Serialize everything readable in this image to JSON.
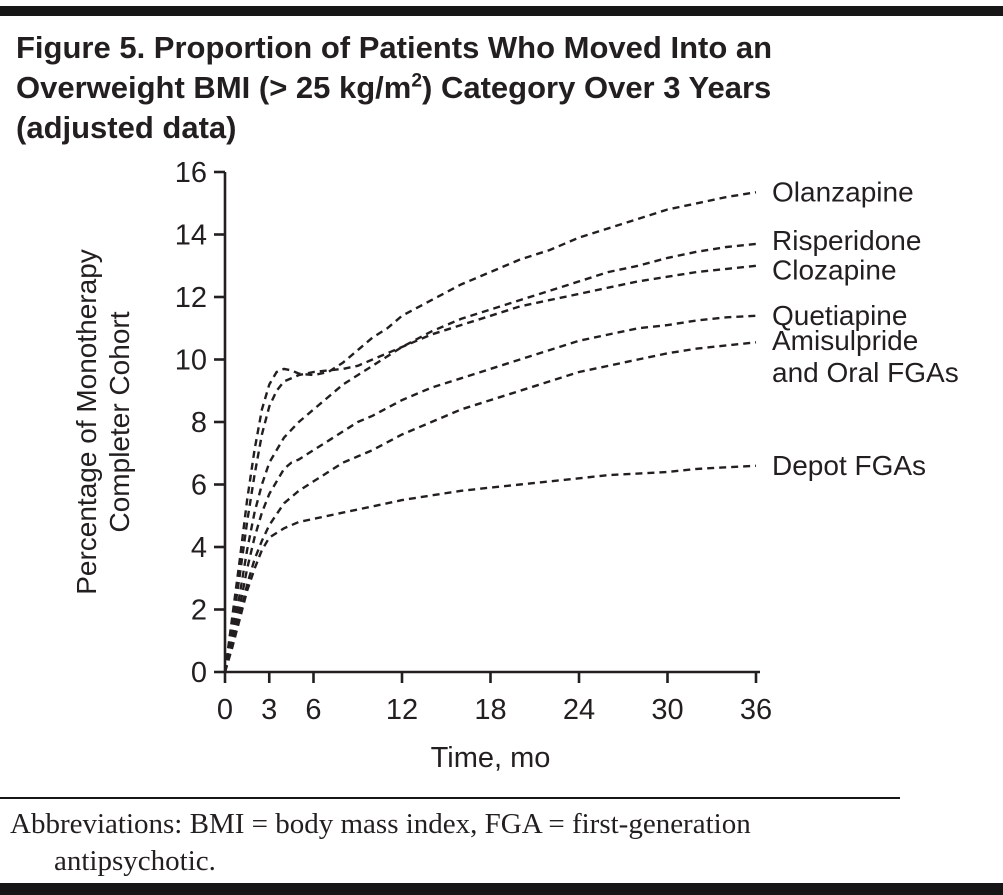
{
  "title": {
    "line1": "Figure 5. Proportion of Patients Who Moved Into an",
    "line2_pre": "Overweight BMI (> 25 kg/m",
    "line2_sup": "2",
    "line2_post": ") Category Over 3 Years",
    "line3": "(adjusted data)"
  },
  "footer": {
    "abbreviations": "Abbreviations: BMI = body mass index, FGA = first-generation antipsychotic."
  },
  "chart_data": {
    "type": "line",
    "line_style": "dashed",
    "line_color": "#231f20",
    "title": "Figure 5. Proportion of Patients Who Moved Into an Overweight BMI (> 25 kg/m2) Category Over 3 Years (adjusted data)",
    "xlabel": "Time, mo",
    "ylabel_lines": [
      "Percentage of Monotherapy",
      "Completer Cohort"
    ],
    "xlim": [
      0,
      36
    ],
    "ylim": [
      0,
      16
    ],
    "xticks": [
      0,
      3,
      6,
      12,
      18,
      24,
      30,
      36
    ],
    "yticks": [
      0,
      2,
      4,
      6,
      8,
      10,
      12,
      14,
      16
    ],
    "grid": false,
    "legend_position": "right-of-lines",
    "series": [
      {
        "id": "olanzapine",
        "name": "Olanzapine",
        "label_lines": [
          "Olanzapine"
        ],
        "label_y": 15.35,
        "points": [
          [
            0,
            0
          ],
          [
            0.5,
            1.8
          ],
          [
            1,
            3.6
          ],
          [
            1.5,
            5.5
          ],
          [
            2,
            7.1
          ],
          [
            2.5,
            8.4
          ],
          [
            3,
            9.2
          ],
          [
            3.5,
            9.6
          ],
          [
            4,
            9.7
          ],
          [
            4.5,
            9.65
          ],
          [
            5,
            9.55
          ],
          [
            6,
            9.5
          ],
          [
            7,
            9.6
          ],
          [
            8,
            9.9
          ],
          [
            9,
            10.3
          ],
          [
            10,
            10.7
          ],
          [
            11,
            11.0
          ],
          [
            12,
            11.4
          ],
          [
            14,
            11.9
          ],
          [
            16,
            12.4
          ],
          [
            18,
            12.8
          ],
          [
            20,
            13.2
          ],
          [
            22,
            13.5
          ],
          [
            24,
            13.9
          ],
          [
            26,
            14.2
          ],
          [
            28,
            14.5
          ],
          [
            30,
            14.8
          ],
          [
            32,
            15.0
          ],
          [
            34,
            15.2
          ],
          [
            36,
            15.35
          ]
        ]
      },
      {
        "id": "risperidone",
        "name": "Risperidone",
        "label_lines": [
          "Risperidone"
        ],
        "label_y": 13.8,
        "points": [
          [
            0,
            0
          ],
          [
            0.5,
            1.2
          ],
          [
            1,
            2.5
          ],
          [
            1.5,
            3.9
          ],
          [
            2,
            5.1
          ],
          [
            2.5,
            6.0
          ],
          [
            3,
            6.7
          ],
          [
            4,
            7.5
          ],
          [
            5,
            8.0
          ],
          [
            6,
            8.4
          ],
          [
            7,
            8.8
          ],
          [
            8,
            9.2
          ],
          [
            9,
            9.5
          ],
          [
            10,
            9.8
          ],
          [
            12,
            10.4
          ],
          [
            14,
            10.9
          ],
          [
            16,
            11.3
          ],
          [
            18,
            11.6
          ],
          [
            20,
            11.9
          ],
          [
            22,
            12.2
          ],
          [
            24,
            12.5
          ],
          [
            26,
            12.8
          ],
          [
            28,
            13.0
          ],
          [
            30,
            13.25
          ],
          [
            32,
            13.45
          ],
          [
            34,
            13.6
          ],
          [
            36,
            13.7
          ]
        ]
      },
      {
        "id": "clozapine",
        "name": "Clozapine",
        "label_lines": [
          "Clozapine"
        ],
        "label_y": 12.85,
        "points": [
          [
            0,
            0
          ],
          [
            0.5,
            1.5
          ],
          [
            1,
            3.1
          ],
          [
            1.5,
            4.8
          ],
          [
            2,
            6.3
          ],
          [
            2.5,
            7.6
          ],
          [
            3,
            8.5
          ],
          [
            3.5,
            9.0
          ],
          [
            4,
            9.3
          ],
          [
            5,
            9.5
          ],
          [
            6,
            9.6
          ],
          [
            7,
            9.65
          ],
          [
            8,
            9.7
          ],
          [
            9,
            9.8
          ],
          [
            10,
            10.0
          ],
          [
            12,
            10.4
          ],
          [
            14,
            10.8
          ],
          [
            16,
            11.1
          ],
          [
            18,
            11.4
          ],
          [
            20,
            11.7
          ],
          [
            22,
            11.9
          ],
          [
            24,
            12.1
          ],
          [
            26,
            12.3
          ],
          [
            28,
            12.5
          ],
          [
            30,
            12.65
          ],
          [
            32,
            12.8
          ],
          [
            34,
            12.9
          ],
          [
            36,
            13.0
          ]
        ]
      },
      {
        "id": "quetiapine",
        "name": "Quetiapine",
        "label_lines": [
          "Quetiapine"
        ],
        "label_y": 11.4,
        "points": [
          [
            0,
            0
          ],
          [
            0.5,
            1.0
          ],
          [
            1,
            2.1
          ],
          [
            1.5,
            3.3
          ],
          [
            2,
            4.3
          ],
          [
            2.5,
            5.1
          ],
          [
            3,
            5.7
          ],
          [
            4,
            6.5
          ],
          [
            4.5,
            6.7
          ],
          [
            5,
            6.8
          ],
          [
            6,
            7.1
          ],
          [
            7,
            7.4
          ],
          [
            8,
            7.7
          ],
          [
            9,
            8.0
          ],
          [
            10,
            8.2
          ],
          [
            12,
            8.7
          ],
          [
            14,
            9.1
          ],
          [
            16,
            9.4
          ],
          [
            18,
            9.7
          ],
          [
            20,
            10.0
          ],
          [
            22,
            10.3
          ],
          [
            24,
            10.6
          ],
          [
            26,
            10.8
          ],
          [
            28,
            11.0
          ],
          [
            30,
            11.1
          ],
          [
            32,
            11.25
          ],
          [
            34,
            11.35
          ],
          [
            36,
            11.4
          ]
        ]
      },
      {
        "id": "amisulpride-oral-fgas",
        "name": "Amisulpride and Oral FGAs",
        "label_lines": [
          "Amisulpride",
          "and Oral FGAs"
        ],
        "label_y": 10.6,
        "points": [
          [
            0,
            0
          ],
          [
            0.5,
            0.9
          ],
          [
            1,
            1.8
          ],
          [
            1.5,
            2.8
          ],
          [
            2,
            3.6
          ],
          [
            2.5,
            4.2
          ],
          [
            3,
            4.7
          ],
          [
            4,
            5.4
          ],
          [
            5,
            5.8
          ],
          [
            6,
            6.1
          ],
          [
            7,
            6.4
          ],
          [
            8,
            6.7
          ],
          [
            9,
            6.9
          ],
          [
            10,
            7.1
          ],
          [
            12,
            7.6
          ],
          [
            14,
            8.0
          ],
          [
            16,
            8.4
          ],
          [
            18,
            8.7
          ],
          [
            20,
            9.0
          ],
          [
            22,
            9.3
          ],
          [
            24,
            9.6
          ],
          [
            26,
            9.8
          ],
          [
            28,
            10.0
          ],
          [
            30,
            10.2
          ],
          [
            32,
            10.35
          ],
          [
            34,
            10.45
          ],
          [
            36,
            10.55
          ]
        ]
      },
      {
        "id": "depot-fgas",
        "name": "Depot FGAs",
        "label_lines": [
          "Depot FGAs"
        ],
        "label_y": 6.6,
        "points": [
          [
            0,
            0
          ],
          [
            0.5,
            0.8
          ],
          [
            1,
            1.7
          ],
          [
            1.5,
            2.6
          ],
          [
            2,
            3.3
          ],
          [
            2.5,
            3.9
          ],
          [
            3,
            4.3
          ],
          [
            4,
            4.6
          ],
          [
            5,
            4.8
          ],
          [
            6,
            4.9
          ],
          [
            8,
            5.1
          ],
          [
            10,
            5.3
          ],
          [
            12,
            5.5
          ],
          [
            14,
            5.65
          ],
          [
            16,
            5.8
          ],
          [
            18,
            5.9
          ],
          [
            20,
            6.0
          ],
          [
            22,
            6.1
          ],
          [
            24,
            6.2
          ],
          [
            26,
            6.3
          ],
          [
            28,
            6.35
          ],
          [
            30,
            6.4
          ],
          [
            32,
            6.5
          ],
          [
            34,
            6.55
          ],
          [
            36,
            6.6
          ]
        ]
      }
    ]
  }
}
